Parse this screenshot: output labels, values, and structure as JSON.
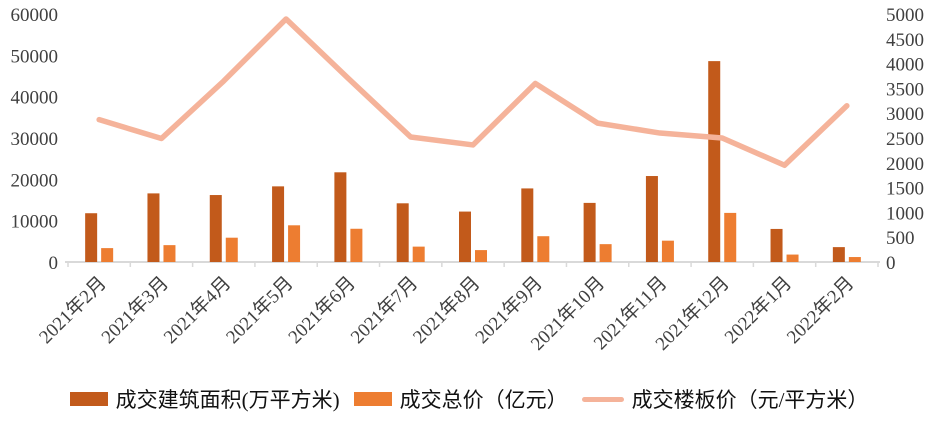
{
  "chart_data": {
    "type": "bar",
    "subtype": "combo-bar-line",
    "title": "",
    "categories": [
      "2021年2月",
      "2021年3月",
      "2021年4月",
      "2021年5月",
      "2021年6月",
      "2021年7月",
      "2021年8月",
      "2021年9月",
      "2021年10月",
      "2021年11月",
      "2021年12月",
      "2022年1月",
      "2022年2月"
    ],
    "series": [
      {
        "name": "成交建筑面积(万平方米)",
        "type": "bar",
        "axis": "left",
        "color": "#C25A1B",
        "values": [
          11800,
          16600,
          16200,
          18300,
          21700,
          14200,
          12200,
          17800,
          14300,
          20800,
          48600,
          8000,
          3600
        ]
      },
      {
        "name": "成交总价（亿元）",
        "type": "bar",
        "axis": "right",
        "color": "#ED7D31",
        "values": [
          280,
          340,
          490,
          740,
          670,
          310,
          240,
          520,
          360,
          430,
          990,
          150,
          100
        ]
      },
      {
        "name": "成交楼板价（元/平方米）",
        "type": "line",
        "axis": "right",
        "color": "#F5B39A",
        "values": [
          2870,
          2490,
          3650,
          4900,
          3700,
          2520,
          2360,
          3600,
          2800,
          2600,
          2500,
          1950,
          3150
        ]
      }
    ],
    "left_axis": {
      "min": 0,
      "max": 60000,
      "step": 10000,
      "tick_labels": [
        "0",
        "10000",
        "20000",
        "30000",
        "40000",
        "50000",
        "60000"
      ]
    },
    "right_axis": {
      "min": 0,
      "max": 5000,
      "step": 500,
      "tick_labels": [
        "0",
        "500",
        "1000",
        "1500",
        "2000",
        "2500",
        "3000",
        "3500",
        "4000",
        "4500",
        "5000"
      ]
    },
    "grid": false,
    "legend_position": "bottom"
  },
  "colors": {
    "background": "#FFFFFF",
    "axis_line": "#D9D9D9",
    "tick_text": "#404040",
    "legend_text": "#111111"
  }
}
